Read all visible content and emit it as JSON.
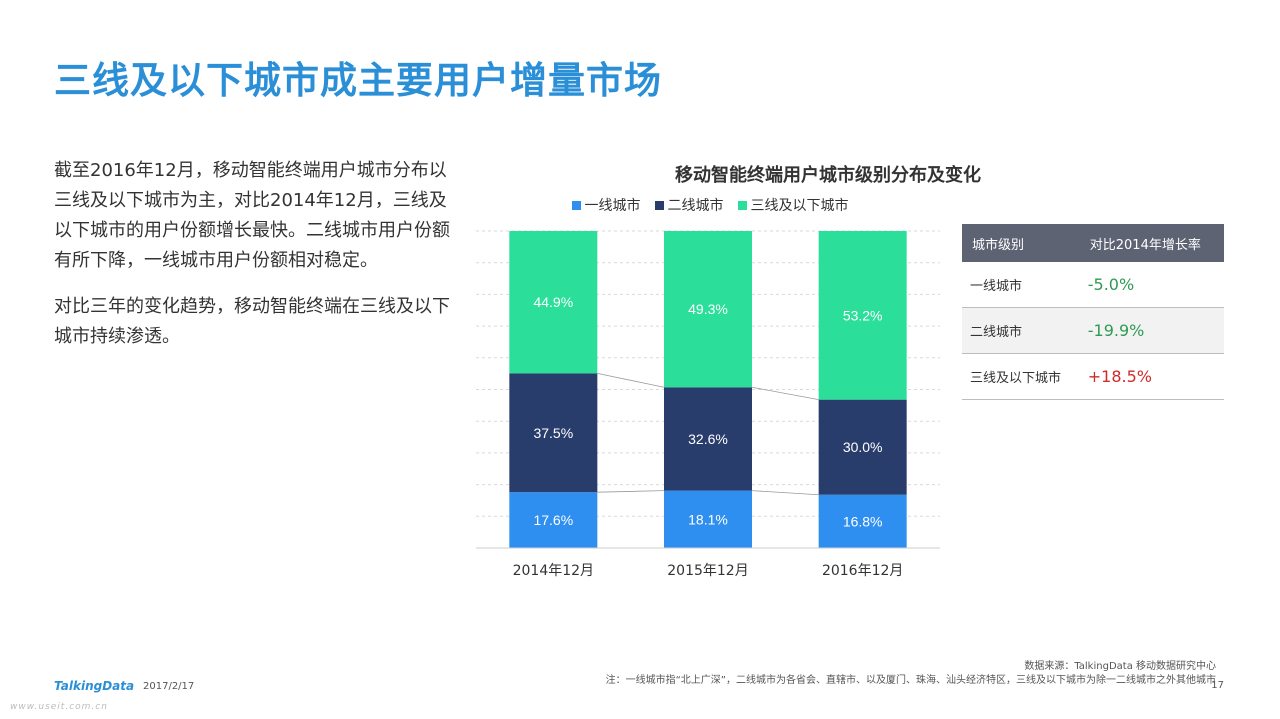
{
  "page": {
    "title": "三线及以下城市成主要用户增量市场",
    "paragraphs": [
      "截至2016年12月，移动智能终端用户城市分布以三线及以下城市为主，对比2014年12月，三线及以下城市的用户份额增长最快。二线城市用户份额有所下降，一线城市用户份额相对稳定。",
      "对比三年的变化趋势，移动智能终端在三线及以下城市持续渗透。"
    ]
  },
  "chart_data": {
    "type": "bar",
    "stacked": true,
    "percent": true,
    "title": "移动智能终端用户城市级别分布及变化",
    "categories": [
      "2014年12月",
      "2015年12月",
      "2016年12月"
    ],
    "series": [
      {
        "name": "一线城市",
        "values": [
          17.6,
          18.1,
          16.8
        ],
        "labels": [
          "17.6%",
          "18.1%",
          "16.8%"
        ],
        "color": "#2e8ff0"
      },
      {
        "name": "二线城市",
        "values": [
          37.5,
          32.6,
          30.0
        ],
        "labels": [
          "37.5%",
          "32.6%",
          "30.0%"
        ],
        "color": "#283d6b"
      },
      {
        "name": "三线及以下城市",
        "values": [
          44.9,
          49.3,
          53.2
        ],
        "labels": [
          "44.9%",
          "49.3%",
          "53.2%"
        ],
        "color": "#2bde9a"
      }
    ],
    "ylim": [
      0,
      100
    ],
    "grid": true,
    "legend": "top-center"
  },
  "growth_table": {
    "headers": [
      "城市级别",
      "对比2014年增长率"
    ],
    "rows": [
      {
        "city": "一线城市",
        "rate": "-5.0%",
        "trend": "down"
      },
      {
        "city": "二线城市",
        "rate": "-19.9%",
        "trend": "down"
      },
      {
        "city": "三线及以下城市",
        "rate": "+18.5%",
        "trend": "up"
      }
    ]
  },
  "footer": {
    "source": "数据来源：TalkingData 移动数据研究中心",
    "note": "注：一线城市指“北上广深”，二线城市为各省会、直辖市、以及厦门、珠海、汕头经济特区，三线及以下城市为除一二线城市之外其他城市",
    "logo": "TalkingData",
    "date": "2017/2/17",
    "page_number": "17",
    "watermark": "www.useit.com.cn"
  },
  "colors": {
    "title": "#2b8fd8",
    "tier1": "#2e8ff0",
    "tier2": "#283d6b",
    "tier3": "#2bde9a",
    "table_header": "#5d6373",
    "negative": "#2e9b54",
    "positive": "#d02a2a"
  }
}
